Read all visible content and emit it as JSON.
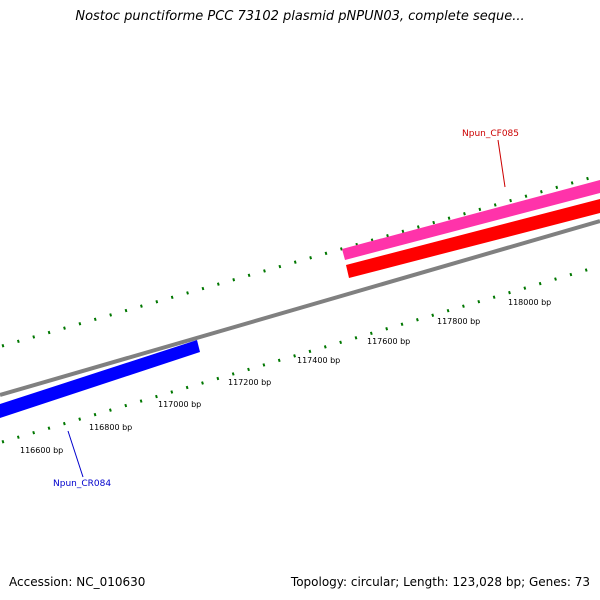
{
  "title": "Nostoc punctiforme PCC 73102 plasmid pNPUN03, complete seque...",
  "footer": {
    "accession": "Accession: NC_010630",
    "summary": "Topology: circular; Length: 123,028 bp; Genes: 73"
  },
  "ticks": [
    {
      "label": "116600 bp"
    },
    {
      "label": "116800 bp"
    },
    {
      "label": "117000 bp"
    },
    {
      "label": "117200 bp"
    },
    {
      "label": "117400 bp"
    },
    {
      "label": "117600 bp"
    },
    {
      "label": "117800 bp"
    },
    {
      "label": "118000 bp"
    }
  ],
  "genes": [
    {
      "name": "Npun_CR084",
      "strand": "reverse",
      "color": "#0000ee"
    },
    {
      "name": "Npun_CF085",
      "strand": "forward",
      "color": "#ff3399"
    }
  ],
  "colors": {
    "backbone": "#808080",
    "forward_cds": "#ff33aa",
    "forward_gene": "#ff0000",
    "reverse_cds": "#0000ff",
    "tick": "#007700",
    "label_forward": "#cc0000",
    "label_reverse": "#0000cc"
  }
}
